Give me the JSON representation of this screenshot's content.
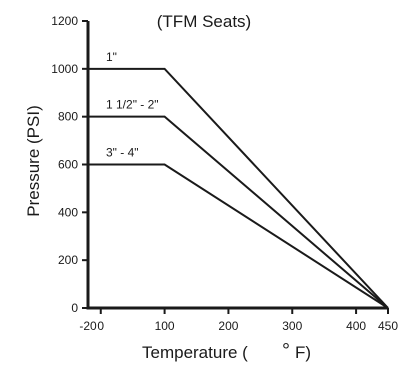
{
  "chart_data": {
    "type": "line",
    "title": "(TFM Seats)",
    "ylabel": "Pressure (PSI)",
    "xlabel": {
      "prefix": "Temperature (",
      "degree": "°",
      "unit": "F)"
    },
    "xlim": [
      -20,
      450
    ],
    "ylim": [
      0,
      1200
    ],
    "xticks": [
      -20,
      0,
      100,
      200,
      300,
      400,
      450
    ],
    "yticks": [
      0,
      200,
      400,
      600,
      800,
      1000,
      1200
    ],
    "grid": false,
    "series": [
      {
        "name": "1\"",
        "x": [
          -20,
          100,
          450
        ],
        "y": [
          1000,
          1000,
          0
        ]
      },
      {
        "name": "1 1/2\" - 2\"",
        "x": [
          -20,
          100,
          450
        ],
        "y": [
          800,
          800,
          0
        ]
      },
      {
        "name": "3\" - 4\"",
        "x": [
          -20,
          100,
          450
        ],
        "y": [
          600,
          600,
          0
        ]
      }
    ],
    "colors": {
      "line": "#1a1a1a",
      "axis": "#1a1a1a"
    }
  }
}
